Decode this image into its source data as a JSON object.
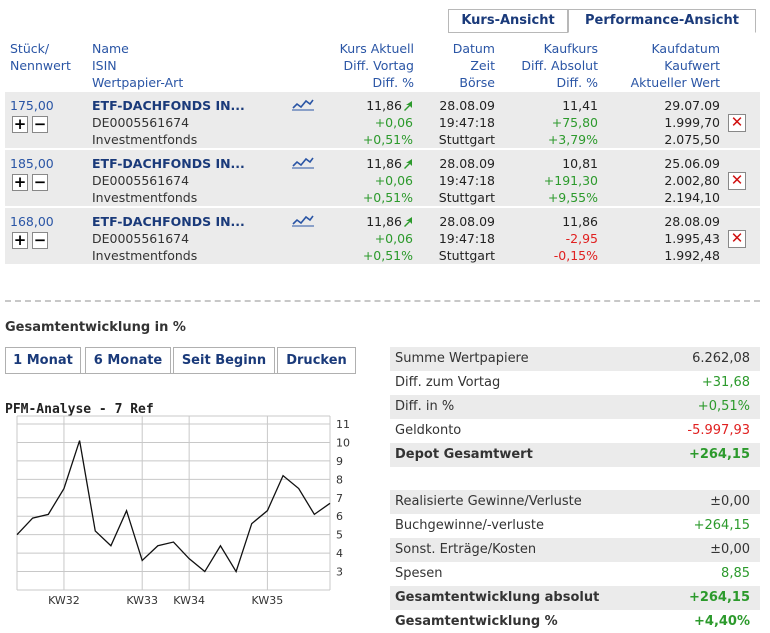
{
  "view_tabs": {
    "kurs": "Kurs-Ansicht",
    "performance": "Performance-Ansicht"
  },
  "header": {
    "col1": [
      "Stück/",
      "Nennwert"
    ],
    "col2": [
      "Name",
      "ISIN",
      "Wertpapier-Art"
    ],
    "col3": [
      "Kurs Aktuell",
      "Diff. Vortag",
      "Diff. %"
    ],
    "col4": [
      "Datum",
      "Zeit",
      "Börse"
    ],
    "col5": [
      "Kaufkurs",
      "Diff. Absolut",
      "Diff. %"
    ],
    "col6": [
      "Kaufdatum",
      "Kaufwert",
      "Aktueller Wert"
    ]
  },
  "rows": [
    {
      "qty": "175,00",
      "name": "ETF-DACHFONDS IN...",
      "isin": "DE0005561674",
      "type": "Investmentfonds",
      "kurs": "11,86",
      "diff_vortag": "+0,06",
      "diff_pct": "+0,51%",
      "datum": "28.08.09",
      "zeit": "19:47:18",
      "boerse": "Stuttgart",
      "kaufkurs": "11,41",
      "diff_abs": "+75,80",
      "diff_abs_pct": "+3,79%",
      "kaufdatum": "29.07.09",
      "kaufwert": "1.999,70",
      "aktwert": "2.075,50",
      "positive": true
    },
    {
      "qty": "185,00",
      "name": "ETF-DACHFONDS IN...",
      "isin": "DE0005561674",
      "type": "Investmentfonds",
      "kurs": "11,86",
      "diff_vortag": "+0,06",
      "diff_pct": "+0,51%",
      "datum": "28.08.09",
      "zeit": "19:47:18",
      "boerse": "Stuttgart",
      "kaufkurs": "10,81",
      "diff_abs": "+191,30",
      "diff_abs_pct": "+9,55%",
      "kaufdatum": "25.06.09",
      "kaufwert": "2.002,80",
      "aktwert": "2.194,10",
      "positive": true
    },
    {
      "qty": "168,00",
      "name": "ETF-DACHFONDS IN...",
      "isin": "DE0005561674",
      "type": "Investmentfonds",
      "kurs": "11,86",
      "diff_vortag": "+0,06",
      "diff_pct": "+0,51%",
      "datum": "28.08.09",
      "zeit": "19:47:18",
      "boerse": "Stuttgart",
      "kaufkurs": "11,86",
      "diff_abs": "-2,95",
      "diff_abs_pct": "-0,15%",
      "kaufdatum": "28.08.09",
      "kaufwert": "1.995,43",
      "aktwert": "1.992,48",
      "positive": false
    }
  ],
  "row_buttons": {
    "plus": "+",
    "minus": "−",
    "delete": "✕"
  },
  "icons": {
    "trend": "trend-chart-icon",
    "arrow": "up-arrow-icon",
    "delete": "close-icon"
  },
  "colors": {
    "positive": "#2c9a2c",
    "negative": "#e02020",
    "link": "#1a3a7a",
    "row_bg": "#ebebeb"
  },
  "section_title": "Gesamtentwicklung in %",
  "period_tabs": [
    "1 Monat",
    "6 Monate",
    "Seit Beginn",
    "Drucken"
  ],
  "pfm_title": "PFM-Analyse - 7 Ref",
  "chart_data": {
    "type": "line",
    "title": "PFM-Analyse - 7 Ref",
    "x_ticks": [
      "KW32",
      "KW33",
      "KW34",
      "KW35"
    ],
    "y_ticks": [
      3,
      4,
      5,
      6,
      7,
      8,
      9,
      10,
      11
    ],
    "ylim": [
      2,
      11
    ],
    "grid": true,
    "values": [
      5.0,
      5.9,
      6.1,
      7.5,
      10.1,
      5.2,
      4.4,
      6.3,
      3.6,
      4.4,
      4.6,
      3.7,
      3.0,
      4.4,
      3.0,
      5.6,
      6.3,
      8.2,
      7.5,
      6.1,
      6.7
    ]
  },
  "summary": [
    {
      "label": "Summe Wertpapiere",
      "value": "6.262,08",
      "tone": "neutral",
      "bold": false,
      "gray": true
    },
    {
      "label": "Diff. zum Vortag",
      "value": "+31,68",
      "tone": "pos",
      "bold": false,
      "gray": false
    },
    {
      "label": "Diff. in %",
      "value": "+0,51%",
      "tone": "pos",
      "bold": false,
      "gray": true
    },
    {
      "label": "Geldkonto",
      "value": "-5.997,93",
      "tone": "neg",
      "bold": false,
      "gray": false
    },
    {
      "label": "Depot Gesamtwert",
      "value": "+264,15",
      "tone": "pos",
      "bold": true,
      "gray": true
    }
  ],
  "summary2": [
    {
      "label": "Realisierte Gewinne/Verluste",
      "value": "±0,00",
      "tone": "neutral",
      "bold": false,
      "gray": true
    },
    {
      "label": "Buchgewinne/-verluste",
      "value": "+264,15",
      "tone": "pos",
      "bold": false,
      "gray": false
    },
    {
      "label": "Sonst. Erträge/Kosten",
      "value": "±0,00",
      "tone": "neutral",
      "bold": false,
      "gray": true
    },
    {
      "label": "Spesen",
      "value": "8,85",
      "tone": "pos",
      "bold": false,
      "gray": false
    },
    {
      "label": "Gesamtentwicklung absolut",
      "value": "+264,15",
      "tone": "pos",
      "bold": true,
      "gray": true
    },
    {
      "label": "Gesamtentwicklung %",
      "value": "+4,40%",
      "tone": "pos",
      "bold": true,
      "gray": false
    }
  ]
}
